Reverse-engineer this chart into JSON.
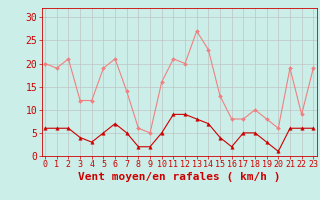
{
  "x": [
    0,
    1,
    2,
    3,
    4,
    5,
    6,
    7,
    8,
    9,
    10,
    11,
    12,
    13,
    14,
    15,
    16,
    17,
    18,
    19,
    20,
    21,
    22,
    23
  ],
  "rafales": [
    20,
    19,
    21,
    12,
    12,
    19,
    21,
    14,
    6,
    5,
    16,
    21,
    20,
    27,
    23,
    13,
    8,
    8,
    10,
    8,
    6,
    19,
    9,
    19
  ],
  "moyen": [
    6,
    6,
    6,
    4,
    3,
    5,
    7,
    5,
    2,
    2,
    5,
    9,
    9,
    8,
    7,
    4,
    2,
    5,
    5,
    3,
    1,
    6,
    6,
    6
  ],
  "color_rafales": "#f08080",
  "color_moyen": "#cc0000",
  "bg_color": "#cceee8",
  "grid_color": "#bbbbbb",
  "xlabel": "Vent moyen/en rafales ( km/h )",
  "ylabel_ticks": [
    0,
    5,
    10,
    15,
    20,
    25,
    30
  ],
  "xlim": [
    -0.3,
    23.3
  ],
  "ylim": [
    0,
    32
  ],
  "tick_fontsize": 7,
  "xlabel_fontsize": 8
}
